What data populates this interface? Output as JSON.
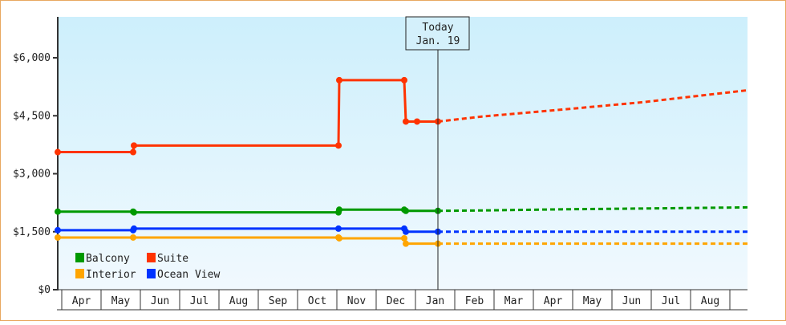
{
  "chart_data": {
    "type": "line",
    "title": "",
    "xlabel": "",
    "ylabel": "",
    "ylim": [
      0,
      6000
    ],
    "yticks": [
      {
        "value": 0,
        "label": "$0"
      },
      {
        "value": 1500,
        "label": "$1,500"
      },
      {
        "value": 3000,
        "label": "$3,000"
      },
      {
        "value": 4500,
        "label": "$4,500"
      },
      {
        "value": 6000,
        "label": "$6,000"
      }
    ],
    "months": [
      "Apr",
      "May",
      "Jun",
      "Jul",
      "Aug",
      "Sep",
      "Oct",
      "Nov",
      "Dec",
      "Jan",
      "Feb",
      "Mar",
      "Apr",
      "May",
      "Jun",
      "Jul",
      "Aug"
    ],
    "today_marker": {
      "line1": "Today",
      "line2": "Jan. 19"
    },
    "legend": [
      {
        "name": "Balcony",
        "color": "#009900"
      },
      {
        "name": "Suite",
        "color": "#ff3300"
      },
      {
        "name": "Interior",
        "color": "#ffa500"
      },
      {
        "name": "Ocean View",
        "color": "#0033ff"
      }
    ],
    "series": [
      {
        "name": "Suite",
        "color": "#ff3300",
        "history": [
          [
            71,
            3560
          ],
          [
            165,
            3560
          ],
          [
            166,
            3730
          ],
          [
            421,
            3730
          ],
          [
            422,
            5420
          ],
          [
            503,
            5420
          ],
          [
            505,
            4350
          ],
          [
            519,
            4350
          ],
          [
            545,
            4350
          ]
        ],
        "projection": [
          [
            545,
            4350
          ],
          [
            600,
            4480
          ],
          [
            700,
            4660
          ],
          [
            800,
            4850
          ],
          [
            931,
            5160
          ]
        ]
      },
      {
        "name": "Balcony",
        "color": "#009900",
        "history": [
          [
            71,
            2020
          ],
          [
            165,
            2020
          ],
          [
            166,
            2000
          ],
          [
            421,
            2000
          ],
          [
            422,
            2070
          ],
          [
            503,
            2070
          ],
          [
            505,
            2040
          ],
          [
            545,
            2040
          ]
        ],
        "projection": [
          [
            545,
            2040
          ],
          [
            600,
            2050
          ],
          [
            700,
            2080
          ],
          [
            800,
            2100
          ],
          [
            931,
            2130
          ]
        ]
      },
      {
        "name": "Ocean View",
        "color": "#0033ff",
        "history": [
          [
            71,
            1540
          ],
          [
            165,
            1540
          ],
          [
            166,
            1580
          ],
          [
            421,
            1580
          ],
          [
            503,
            1580
          ],
          [
            505,
            1500
          ],
          [
            545,
            1500
          ]
        ],
        "projection": [
          [
            545,
            1500
          ],
          [
            931,
            1500
          ]
        ]
      },
      {
        "name": "Interior",
        "color": "#ffa500",
        "history": [
          [
            71,
            1350
          ],
          [
            165,
            1350
          ],
          [
            421,
            1350
          ],
          [
            422,
            1330
          ],
          [
            503,
            1330
          ],
          [
            505,
            1190
          ],
          [
            545,
            1190
          ]
        ],
        "projection": [
          [
            545,
            1190
          ],
          [
            931,
            1190
          ]
        ]
      }
    ]
  }
}
